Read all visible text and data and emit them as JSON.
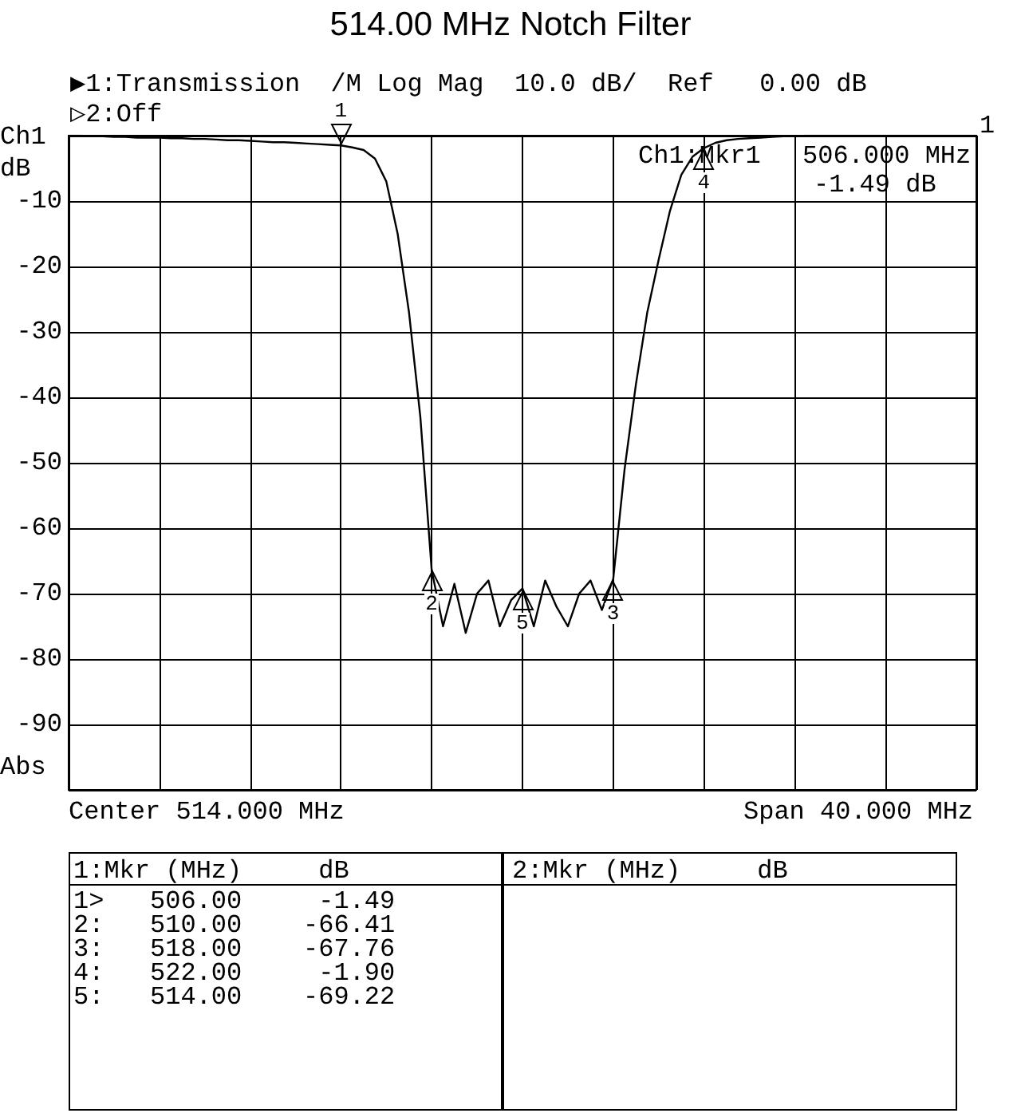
{
  "chart_data": {
    "type": "line",
    "title": "514.00 MHz Notch Filter",
    "categories": [
      null,
      null,
      null,
      null,
      null,
      null,
      null,
      null,
      null,
      null,
      null,
      null,
      null,
      null,
      null,
      null,
      null,
      null,
      null,
      null,
      null,
      null,
      null,
      null,
      null,
      null,
      null,
      null,
      null,
      null,
      null,
      null,
      null,
      null,
      null,
      null,
      null,
      null,
      null,
      null,
      null,
      null,
      null,
      null,
      null,
      null,
      null,
      null,
      null,
      null,
      null,
      null,
      null,
      null,
      null,
      null,
      null,
      null,
      null,
      null,
      null,
      null,
      null,
      null,
      null,
      null,
      null,
      null,
      null,
      null,
      null,
      null,
      null,
      null,
      null,
      null,
      null,
      null,
      null,
      null,
      null
    ],
    "ylim": [
      -100,
      0
    ],
    "yticks": [
      {
        "value": 0,
        "label": null
      },
      -10,
      -20,
      -30,
      -40,
      -50,
      -60,
      -70,
      -80,
      -90,
      {
        "value": -100,
        "label": null
      }
    ],
    "tick_labels": "y",
    "grid": true,
    "series": [
      {
        "color": "#000000",
        "values": [
          0,
          0,
          -0.1,
          -0.1,
          -0.2,
          -0.2,
          -0.3,
          -0.3,
          -0.3,
          -0.4,
          -0.4,
          -0.5,
          -0.5,
          -0.6,
          -0.7,
          -0.7,
          -0.8,
          -0.9,
          -1,
          -1,
          -1.1,
          -1.2,
          -1.3,
          -1.4,
          -1.49,
          -1.8,
          -2.2,
          -3.5,
          -7,
          -15,
          -27,
          -43,
          -66.41,
          -75,
          -68.5,
          -76,
          -70,
          -68,
          -75,
          -71,
          -69.22,
          -75,
          -68,
          -72,
          -75,
          -70,
          -68,
          -72.5,
          -67.76,
          -51,
          -38,
          -27,
          -19,
          -11.5,
          -6,
          -3.2,
          -1.9,
          -1.1,
          -0.7,
          -0.5,
          -0.4,
          -0.3,
          -0.2,
          -0.1,
          -0.1,
          0,
          0,
          0,
          0,
          0,
          0,
          0,
          0,
          0,
          0,
          0,
          0,
          0,
          0,
          0,
          0
        ]
      }
    ],
    "annotations": [
      "▶1:Transmission  /M Log Mag  10.0 dB/  Ref   0.00 dB",
      "▷2:Off",
      "Ch1",
      "dB",
      "Abs",
      "Ch1:Mkr1",
      "506.000 MHz",
      "-1.49 dB",
      "1",
      "Center 514.000 MHz",
      "Span 40.000 MHz",
      "1:Mkr (MHz)     dB",
      "2:Mkr (MHz)     dB",
      "1>   506.00     -1.49",
      "2:   510.00    -66.41",
      "3:   518.00    -67.76",
      "4:   522.00     -1.90",
      "5:   514.00    -69.22",
      "1",
      "2",
      "3",
      "4",
      "5"
    ]
  }
}
